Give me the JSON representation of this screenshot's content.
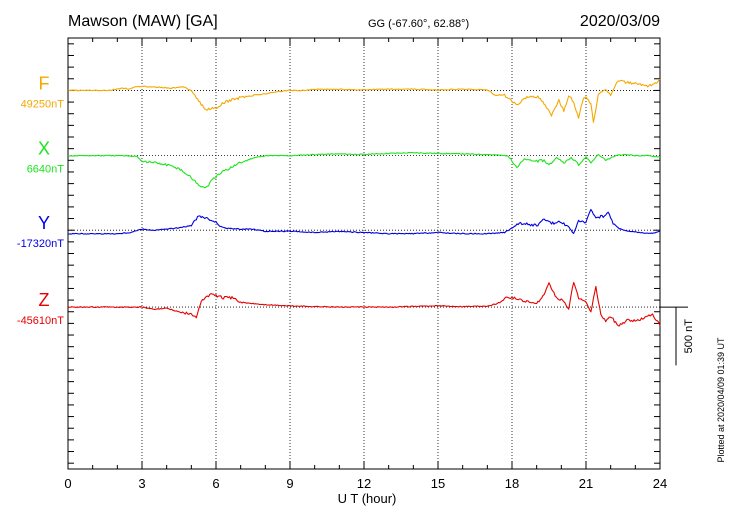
{
  "header": {
    "station": "Mawson (MAW)  [GA]",
    "coords": "GG (-67.60°,  62.88°)",
    "date": "2020/03/09"
  },
  "footer": {
    "plotted": "Plotted at 2020/04/09 01:39 UT",
    "scale_label": "500 nT"
  },
  "chart_data": {
    "type": "line",
    "xlabel": "U T (hour)",
    "xlim": [
      0,
      24
    ],
    "xticks": [
      0,
      3,
      6,
      9,
      12,
      15,
      18,
      21,
      24
    ],
    "ylim": [
      -2250,
      1450
    ],
    "scale_bar_nT": 500,
    "grid": true,
    "series": [
      {
        "name": "F",
        "baseline_label": "49250nT",
        "color": "#f5a800",
        "offset": 1000,
        "points": [
          [
            0,
            0
          ],
          [
            1,
            0
          ],
          [
            1.7,
            0
          ],
          [
            2.2,
            20
          ],
          [
            2.5,
            10
          ],
          [
            2.8,
            35
          ],
          [
            3.5,
            30
          ],
          [
            4.2,
            20
          ],
          [
            4.7,
            30
          ],
          [
            5.0,
            0
          ],
          [
            5.2,
            -60
          ],
          [
            5.4,
            -120
          ],
          [
            5.6,
            -170
          ],
          [
            5.8,
            -150
          ],
          [
            6.0,
            -160
          ],
          [
            6.2,
            -120
          ],
          [
            6.5,
            -90
          ],
          [
            7.0,
            -60
          ],
          [
            7.5,
            -40
          ],
          [
            8.0,
            -30
          ],
          [
            8.5,
            -10
          ],
          [
            9.0,
            0
          ],
          [
            9.5,
            0
          ],
          [
            10,
            10
          ],
          [
            11,
            10
          ],
          [
            12,
            5
          ],
          [
            13,
            10
          ],
          [
            14,
            10
          ],
          [
            15,
            5
          ],
          [
            16,
            10
          ],
          [
            17,
            5
          ],
          [
            17.3,
            -40
          ],
          [
            17.7,
            -40
          ],
          [
            18.0,
            -90
          ],
          [
            18.2,
            -130
          ],
          [
            18.5,
            -70
          ],
          [
            18.8,
            -50
          ],
          [
            19.1,
            -60
          ],
          [
            19.4,
            -150
          ],
          [
            19.6,
            -220
          ],
          [
            19.9,
            -80
          ],
          [
            20.1,
            -180
          ],
          [
            20.3,
            -40
          ],
          [
            20.5,
            -100
          ],
          [
            20.7,
            -230
          ],
          [
            20.9,
            -60
          ],
          [
            21.0,
            -50
          ],
          [
            21.2,
            -120
          ],
          [
            21.3,
            -280
          ],
          [
            21.5,
            -30
          ],
          [
            21.8,
            10
          ],
          [
            22.0,
            -40
          ],
          [
            22.3,
            90
          ],
          [
            22.6,
            70
          ],
          [
            23.0,
            60
          ],
          [
            23.5,
            40
          ],
          [
            23.8,
            60
          ],
          [
            24,
            90
          ]
        ]
      },
      {
        "name": "X",
        "baseline_label": "6640nT",
        "color": "#1de51d",
        "offset": 440,
        "points": [
          [
            0,
            0
          ],
          [
            1,
            0
          ],
          [
            2,
            0
          ],
          [
            2.8,
            -5
          ],
          [
            3.0,
            -50
          ],
          [
            3.5,
            -60
          ],
          [
            4.0,
            -80
          ],
          [
            4.5,
            -110
          ],
          [
            5.0,
            -190
          ],
          [
            5.3,
            -250
          ],
          [
            5.5,
            -280
          ],
          [
            5.7,
            -250
          ],
          [
            5.9,
            -200
          ],
          [
            6.2,
            -150
          ],
          [
            6.6,
            -100
          ],
          [
            7.0,
            -60
          ],
          [
            7.5,
            -20
          ],
          [
            8.0,
            0
          ],
          [
            9,
            0
          ],
          [
            10,
            10
          ],
          [
            11,
            15
          ],
          [
            12,
            10
          ],
          [
            13,
            20
          ],
          [
            14,
            25
          ],
          [
            15,
            20
          ],
          [
            16,
            15
          ],
          [
            17,
            10
          ],
          [
            17.8,
            0
          ],
          [
            18.0,
            -40
          ],
          [
            18.2,
            -100
          ],
          [
            18.5,
            -30
          ],
          [
            19.0,
            -50
          ],
          [
            19.3,
            -40
          ],
          [
            19.5,
            -80
          ],
          [
            19.8,
            -20
          ],
          [
            20.1,
            -60
          ],
          [
            20.4,
            -20
          ],
          [
            20.7,
            -80
          ],
          [
            21.0,
            -10
          ],
          [
            21.2,
            -60
          ],
          [
            21.5,
            10
          ],
          [
            21.8,
            -40
          ],
          [
            22.2,
            0
          ],
          [
            22.6,
            10
          ],
          [
            23.0,
            0
          ],
          [
            23.5,
            0
          ],
          [
            24,
            -10
          ]
        ]
      },
      {
        "name": "Y",
        "baseline_label": "-17320nT",
        "color": "#0000e6",
        "offset": -200,
        "points": [
          [
            0,
            -30
          ],
          [
            1,
            -30
          ],
          [
            2,
            -30
          ],
          [
            2.5,
            -20
          ],
          [
            3.0,
            10
          ],
          [
            3.5,
            0
          ],
          [
            4.0,
            10
          ],
          [
            4.5,
            20
          ],
          [
            5.0,
            40
          ],
          [
            5.3,
            120
          ],
          [
            5.6,
            100
          ],
          [
            5.9,
            80
          ],
          [
            6.3,
            20
          ],
          [
            6.8,
            10
          ],
          [
            7.5,
            10
          ],
          [
            8.0,
            -10
          ],
          [
            9.0,
            -10
          ],
          [
            10,
            -20
          ],
          [
            11,
            -10
          ],
          [
            12,
            -20
          ],
          [
            13,
            -30
          ],
          [
            14,
            -30
          ],
          [
            15,
            -20
          ],
          [
            16,
            -30
          ],
          [
            17,
            -30
          ],
          [
            17.7,
            -20
          ],
          [
            18.0,
            20
          ],
          [
            18.3,
            60
          ],
          [
            18.7,
            50
          ],
          [
            19.0,
            40
          ],
          [
            19.3,
            90
          ],
          [
            19.6,
            60
          ],
          [
            20.0,
            70
          ],
          [
            20.3,
            30
          ],
          [
            20.5,
            -30
          ],
          [
            20.7,
            80
          ],
          [
            21.0,
            60
          ],
          [
            21.2,
            180
          ],
          [
            21.4,
            110
          ],
          [
            21.7,
            120
          ],
          [
            21.9,
            150
          ],
          [
            22.1,
            60
          ],
          [
            22.3,
            20
          ],
          [
            22.7,
            -10
          ],
          [
            23.2,
            -20
          ],
          [
            23.6,
            -30
          ],
          [
            24,
            -10
          ]
        ]
      },
      {
        "name": "Z",
        "baseline_label": "-45610nT",
        "color": "#e60000",
        "offset": -860,
        "points": [
          [
            0,
            0
          ],
          [
            1,
            0
          ],
          [
            2,
            0
          ],
          [
            3,
            0
          ],
          [
            3.5,
            -20
          ],
          [
            4.0,
            -10
          ],
          [
            4.5,
            -40
          ],
          [
            5.0,
            -60
          ],
          [
            5.2,
            -90
          ],
          [
            5.4,
            50
          ],
          [
            5.6,
            90
          ],
          [
            5.8,
            110
          ],
          [
            6.0,
            100
          ],
          [
            6.3,
            80
          ],
          [
            6.7,
            80
          ],
          [
            7.0,
            40
          ],
          [
            7.5,
            30
          ],
          [
            8.0,
            20
          ],
          [
            9,
            10
          ],
          [
            10,
            5
          ],
          [
            11,
            0
          ],
          [
            12,
            0
          ],
          [
            13,
            0
          ],
          [
            14,
            5
          ],
          [
            15,
            10
          ],
          [
            16,
            5
          ],
          [
            17,
            10
          ],
          [
            17.4,
            30
          ],
          [
            17.8,
            90
          ],
          [
            18.2,
            70
          ],
          [
            18.6,
            50
          ],
          [
            19.0,
            30
          ],
          [
            19.3,
            100
          ],
          [
            19.5,
            200
          ],
          [
            19.8,
            80
          ],
          [
            20.1,
            50
          ],
          [
            20.3,
            -20
          ],
          [
            20.5,
            220
          ],
          [
            20.7,
            80
          ],
          [
            21.0,
            40
          ],
          [
            21.2,
            -40
          ],
          [
            21.4,
            170
          ],
          [
            21.6,
            -60
          ],
          [
            21.8,
            -120
          ],
          [
            22.0,
            -80
          ],
          [
            22.3,
            -160
          ],
          [
            22.7,
            -110
          ],
          [
            23.0,
            -120
          ],
          [
            23.4,
            -90
          ],
          [
            23.7,
            -60
          ],
          [
            24,
            -160
          ]
        ]
      }
    ]
  }
}
